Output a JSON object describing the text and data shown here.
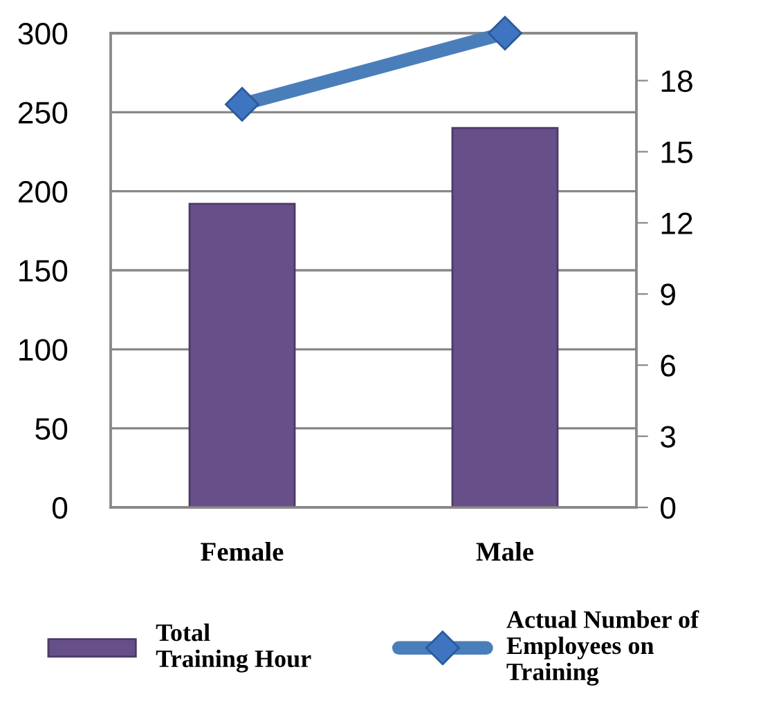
{
  "chart_data": {
    "type": "bar",
    "categories": [
      "Female",
      "Male"
    ],
    "series": [
      {
        "name": "Total Training Hour",
        "color": "#674f8a",
        "values": [
          192,
          240
        ]
      },
      {
        "name": "Actual Number of Employees on Training",
        "color": "#4a7ebb",
        "type": "line",
        "axis": "y2",
        "values": [
          17,
          20
        ]
      }
    ],
    "ylim": [
      0,
      300
    ],
    "yticks": [
      0,
      50,
      100,
      150,
      200,
      250,
      300
    ],
    "y2lim": [
      0,
      20
    ],
    "y2ticks": [
      0,
      3,
      6,
      9,
      12,
      15,
      18
    ],
    "grid": "y",
    "legend": "bottom",
    "marker": "diamond"
  }
}
